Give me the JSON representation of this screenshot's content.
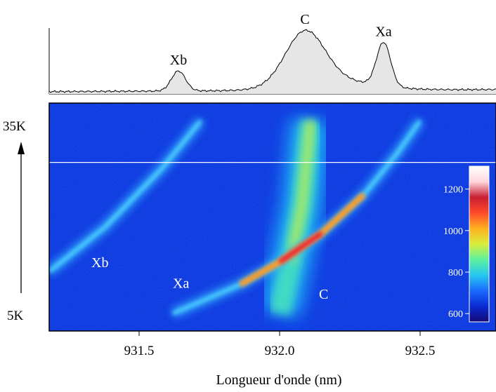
{
  "chart_data": [
    {
      "type": "area",
      "title": "",
      "xlabel": "",
      "ylabel": "",
      "description_peaks": [
        "Xb",
        "C",
        "Xa"
      ],
      "peaks": [
        {
          "label": "Xb",
          "x": 931.64,
          "relative_intensity": 0.38
        },
        {
          "label": "C",
          "x": 932.09,
          "relative_intensity": 1.0
        },
        {
          "label": "Xa",
          "x": 932.37,
          "relative_intensity": 0.83
        }
      ],
      "xlim": [
        931.18,
        932.77
      ]
    },
    {
      "type": "heatmap",
      "xlabel": "Longueur d'onde (nm)",
      "x_ticks": [
        "931.5",
        "932.0",
        "932.5"
      ],
      "x_tick_values": [
        931.5,
        932.0,
        932.5
      ],
      "xlim": [
        931.18,
        932.77
      ],
      "y_labels": [
        "35K",
        "5K"
      ],
      "ylim": [
        5,
        35
      ],
      "slice_marker_temperature": 28.5,
      "annotations": [
        {
          "text": "Xb",
          "x": 931.33,
          "y": 12.2
        },
        {
          "text": "Xa",
          "x": 931.62,
          "y": 9.0
        },
        {
          "text": "C",
          "x": 932.14,
          "y": 7.3
        }
      ],
      "lines": [
        {
          "name": "Xb",
          "points": [
            [
              931.18,
              11.5
            ],
            [
              931.38,
              18.5
            ],
            [
              931.58,
              27.5
            ],
            [
              931.72,
              35
            ]
          ]
        },
        {
          "name": "Xa",
          "points": [
            [
              931.62,
              5
            ],
            [
              931.86,
              9.5
            ],
            [
              932.0,
              13.0
            ],
            [
              932.15,
              17.5
            ],
            [
              932.3,
              23.5
            ],
            [
              932.42,
              30.0
            ],
            [
              932.5,
              35
            ]
          ]
        },
        {
          "name": "C",
          "points": [
            [
              932.0,
              5
            ],
            [
              932.04,
              13.0
            ],
            [
              932.08,
              22.0
            ],
            [
              932.11,
              35
            ]
          ]
        }
      ],
      "colorbar": {
        "ticks": [
          "600",
          "800",
          "1000",
          "1200"
        ],
        "tick_values": [
          600,
          800,
          1000,
          1200
        ],
        "min": 560,
        "max": 1310,
        "colors": [
          "#140a78",
          "#0a2ad2",
          "#1a6aff",
          "#25c8f0",
          "#5ef0a0",
          "#d8ee3a",
          "#ffb020",
          "#ff4a2a",
          "#c81e32",
          "#ffd6dc",
          "#ffffff"
        ]
      }
    }
  ]
}
